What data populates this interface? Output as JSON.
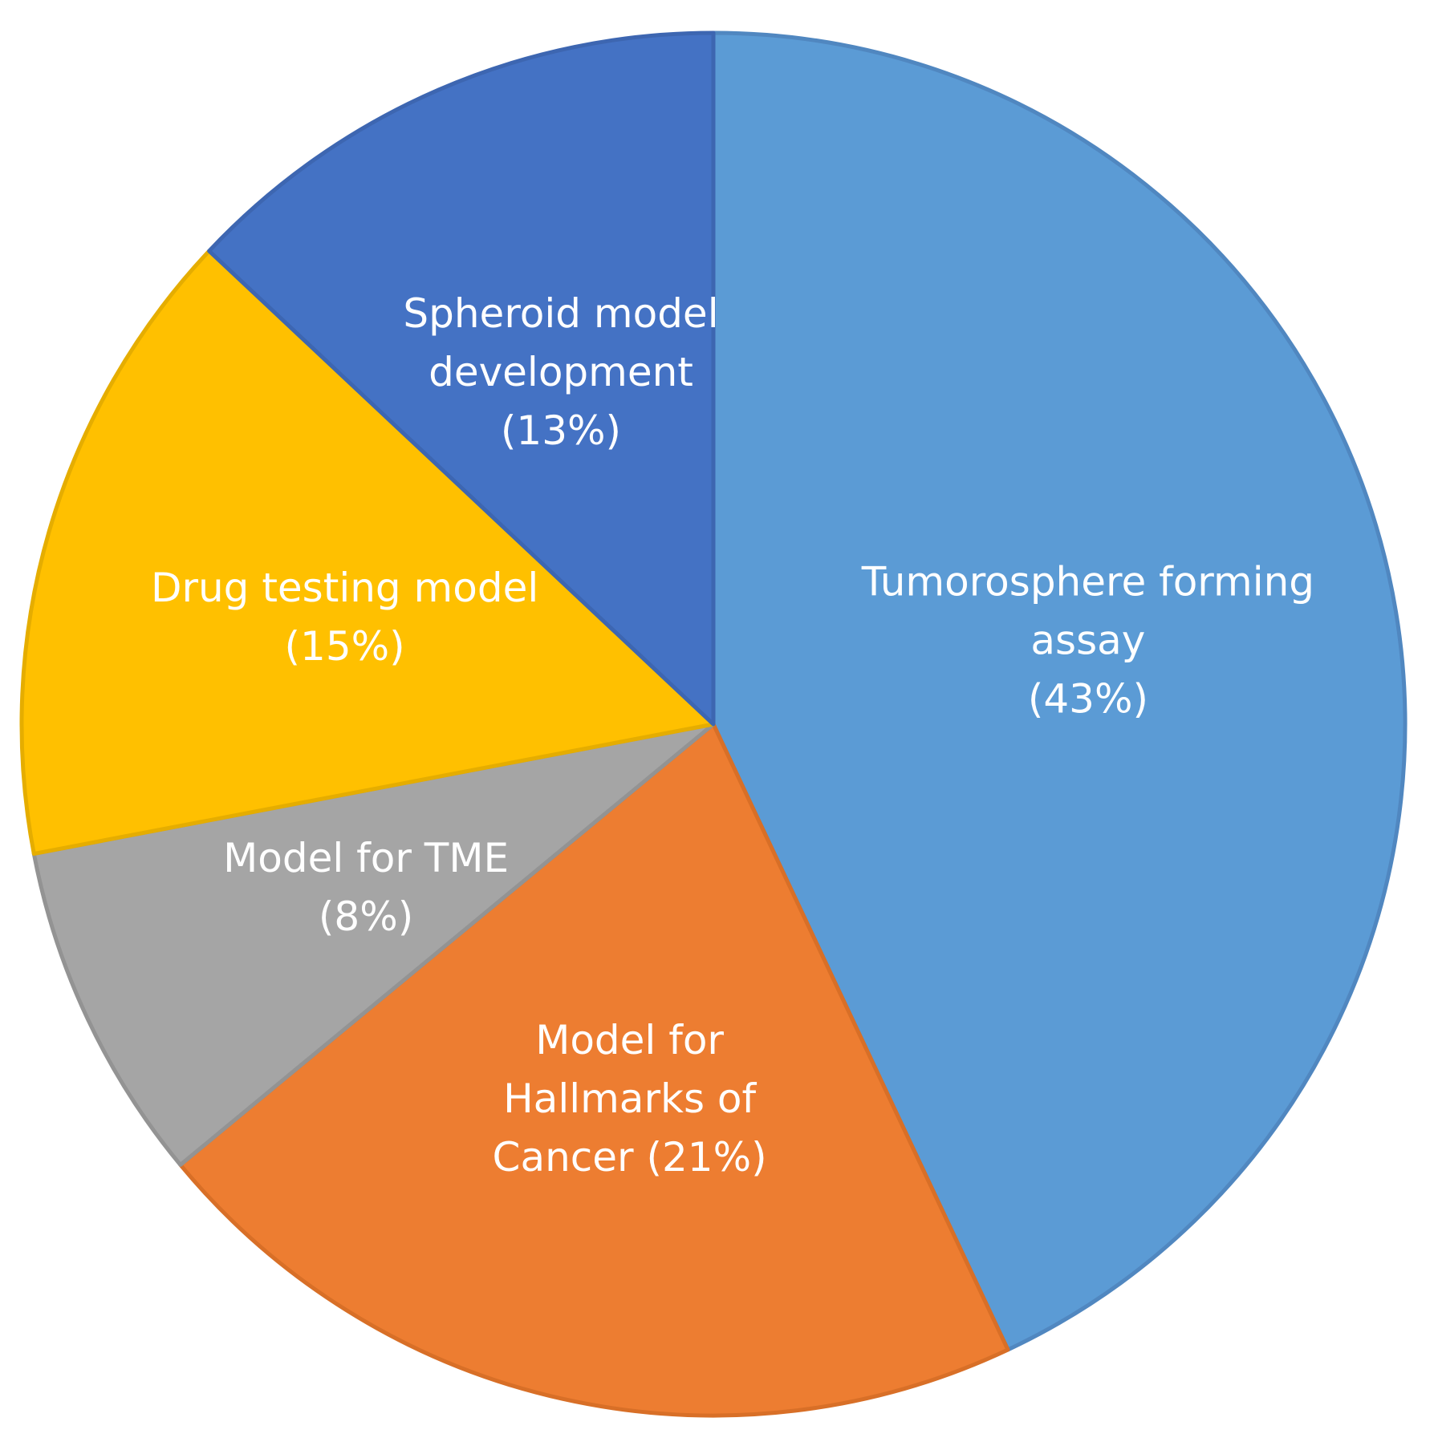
{
  "chart_data": {
    "type": "pie",
    "title": "",
    "slices": [
      {
        "name": "Tumorosphere forming assay",
        "value": 43,
        "label_lines": [
          "Tumorosphere forming",
          "assay",
          "(43%)"
        ],
        "color": "#5B9BD5",
        "stroke": "#5087C0"
      },
      {
        "name": "Model for Hallmarks of Cancer",
        "value": 21,
        "label_lines": [
          "Model for",
          "Hallmarks of",
          "Cancer (21%)"
        ],
        "color": "#ED7D31",
        "stroke": "#D86F27"
      },
      {
        "name": "Model for TME",
        "value": 8,
        "label_lines": [
          "Model for TME",
          "(8%)"
        ],
        "color": "#A5A5A5",
        "stroke": "#939393"
      },
      {
        "name": "Drug testing model",
        "value": 15,
        "label_lines": [
          "Drug testing model",
          "(15%)"
        ],
        "color": "#FFC000",
        "stroke": "#E5AD00"
      },
      {
        "name": "Spheroid model development",
        "value": 13,
        "label_lines": [
          "Spheroid model",
          "development",
          "(13%)"
        ],
        "color": "#4472C4",
        "stroke": "#3D66B1"
      }
    ],
    "start_angle_deg": 0,
    "direction": "clockwise",
    "legend": "none",
    "data_labels": "inside"
  }
}
